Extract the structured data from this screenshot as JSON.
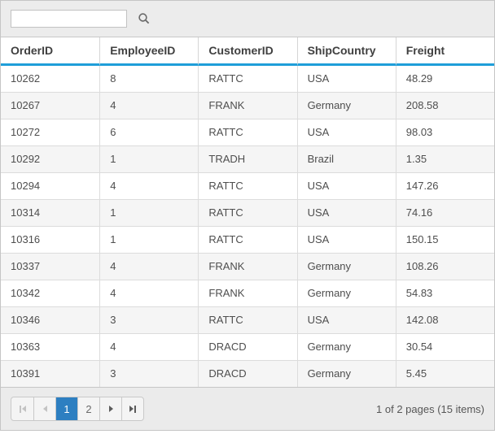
{
  "toolbar": {
    "search_value": "",
    "search_placeholder": ""
  },
  "grid": {
    "columns": [
      "OrderID",
      "EmployeeID",
      "CustomerID",
      "ShipCountry",
      "Freight"
    ],
    "rows": [
      [
        "10262",
        "8",
        "RATTC",
        "USA",
        "48.29"
      ],
      [
        "10267",
        "4",
        "FRANK",
        "Germany",
        "208.58"
      ],
      [
        "10272",
        "6",
        "RATTC",
        "USA",
        "98.03"
      ],
      [
        "10292",
        "1",
        "TRADH",
        "Brazil",
        "1.35"
      ],
      [
        "10294",
        "4",
        "RATTC",
        "USA",
        "147.26"
      ],
      [
        "10314",
        "1",
        "RATTC",
        "USA",
        "74.16"
      ],
      [
        "10316",
        "1",
        "RATTC",
        "USA",
        "150.15"
      ],
      [
        "10337",
        "4",
        "FRANK",
        "Germany",
        "108.26"
      ],
      [
        "10342",
        "4",
        "FRANK",
        "Germany",
        "54.83"
      ],
      [
        "10346",
        "3",
        "RATTC",
        "USA",
        "142.08"
      ],
      [
        "10363",
        "4",
        "DRACD",
        "Germany",
        "30.54"
      ],
      [
        "10391",
        "3",
        "DRACD",
        "Germany",
        "5.45"
      ]
    ]
  },
  "pager": {
    "page_1": "1",
    "page_2": "2",
    "info": "1 of 2 pages (15 items)"
  },
  "colors": {
    "header_accent": "#1f9ed9",
    "active_page": "#2d7fc1"
  }
}
